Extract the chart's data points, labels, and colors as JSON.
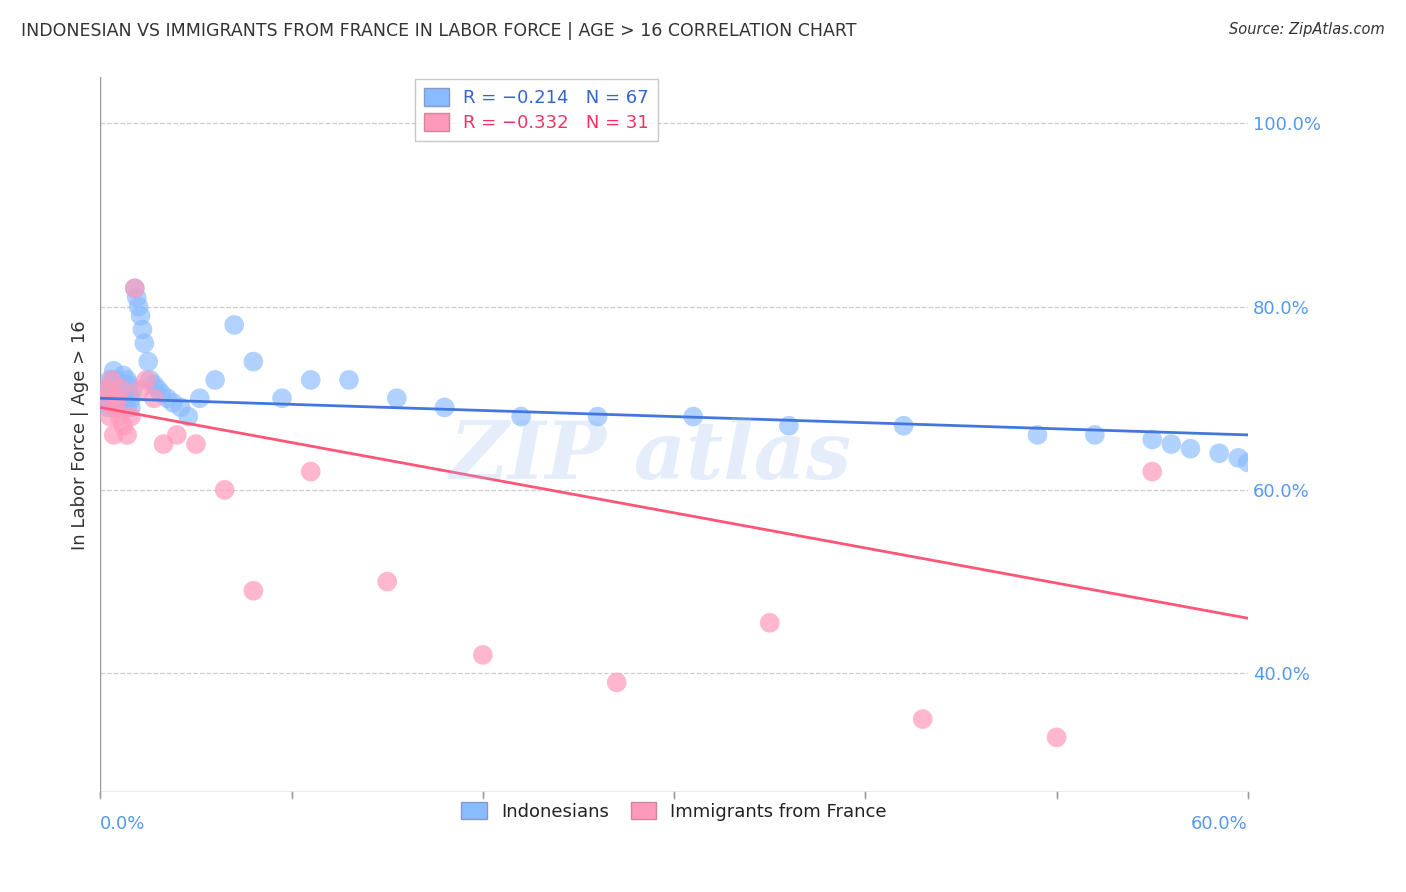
{
  "title": "INDONESIAN VS IMMIGRANTS FROM FRANCE IN LABOR FORCE | AGE > 16 CORRELATION CHART",
  "source": "Source: ZipAtlas.com",
  "ylabel": "In Labor Force | Age > 16",
  "right_yticks": [
    "100.0%",
    "80.0%",
    "60.0%",
    "40.0%"
  ],
  "right_ytick_vals": [
    1.0,
    0.8,
    0.6,
    0.4
  ],
  "blue_color": "#88BBFF",
  "pink_color": "#FF99BB",
  "blue_line_color": "#4477DD",
  "pink_line_color": "#FF5577",
  "background_color": "#FFFFFF",
  "xlim": [
    0.0,
    0.6
  ],
  "ylim": [
    0.27,
    1.05
  ],
  "blue_scatter_x": [
    0.002,
    0.003,
    0.004,
    0.004,
    0.005,
    0.005,
    0.006,
    0.006,
    0.007,
    0.007,
    0.007,
    0.008,
    0.008,
    0.009,
    0.009,
    0.01,
    0.01,
    0.011,
    0.011,
    0.012,
    0.012,
    0.013,
    0.013,
    0.014,
    0.014,
    0.015,
    0.015,
    0.016,
    0.016,
    0.017,
    0.018,
    0.019,
    0.02,
    0.021,
    0.022,
    0.023,
    0.025,
    0.026,
    0.028,
    0.03,
    0.032,
    0.035,
    0.038,
    0.042,
    0.046,
    0.052,
    0.06,
    0.07,
    0.08,
    0.095,
    0.11,
    0.13,
    0.155,
    0.18,
    0.22,
    0.26,
    0.31,
    0.36,
    0.42,
    0.49,
    0.52,
    0.55,
    0.56,
    0.57,
    0.585,
    0.595,
    0.6
  ],
  "blue_scatter_y": [
    0.7,
    0.695,
    0.71,
    0.69,
    0.72,
    0.7,
    0.715,
    0.695,
    0.73,
    0.72,
    0.71,
    0.7,
    0.69,
    0.72,
    0.71,
    0.7,
    0.69,
    0.715,
    0.705,
    0.725,
    0.695,
    0.71,
    0.7,
    0.72,
    0.69,
    0.715,
    0.705,
    0.7,
    0.69,
    0.71,
    0.82,
    0.81,
    0.8,
    0.79,
    0.775,
    0.76,
    0.74,
    0.72,
    0.715,
    0.71,
    0.705,
    0.7,
    0.695,
    0.69,
    0.68,
    0.7,
    0.72,
    0.78,
    0.74,
    0.7,
    0.72,
    0.72,
    0.7,
    0.69,
    0.68,
    0.68,
    0.68,
    0.67,
    0.67,
    0.66,
    0.66,
    0.655,
    0.65,
    0.645,
    0.64,
    0.635,
    0.63
  ],
  "pink_scatter_x": [
    0.003,
    0.004,
    0.005,
    0.006,
    0.007,
    0.008,
    0.009,
    0.01,
    0.011,
    0.012,
    0.014,
    0.016,
    0.018,
    0.021,
    0.024,
    0.028,
    0.033,
    0.04,
    0.05,
    0.065,
    0.08,
    0.11,
    0.15,
    0.2,
    0.27,
    0.35,
    0.43,
    0.5,
    0.55
  ],
  "pink_scatter_y": [
    0.7,
    0.71,
    0.68,
    0.72,
    0.66,
    0.69,
    0.7,
    0.68,
    0.71,
    0.67,
    0.66,
    0.68,
    0.82,
    0.71,
    0.72,
    0.7,
    0.65,
    0.66,
    0.65,
    0.6,
    0.49,
    0.62,
    0.5,
    0.42,
    0.39,
    0.455,
    0.35,
    0.33,
    0.62
  ],
  "blue_line_x": [
    0.0,
    0.6
  ],
  "blue_line_y": [
    0.7,
    0.66
  ],
  "pink_line_x": [
    0.0,
    0.6
  ],
  "pink_line_y": [
    0.69,
    0.46
  ]
}
